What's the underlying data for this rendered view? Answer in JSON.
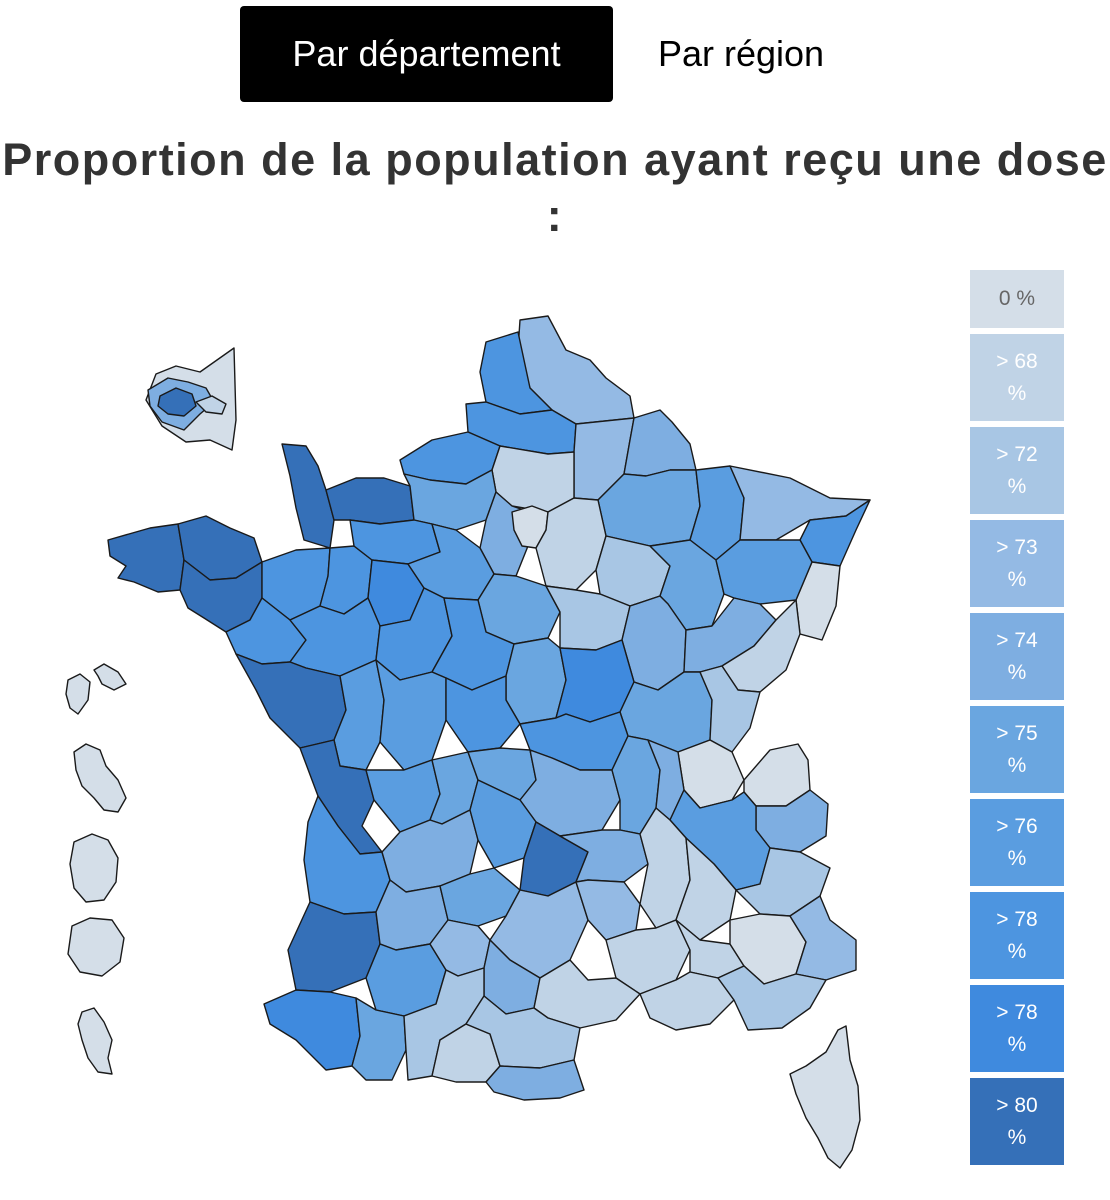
{
  "tabs": [
    {
      "label": "Par département",
      "active": true
    },
    {
      "label": "Par région",
      "active": false
    }
  ],
  "title": "Proportion de la population ayant reçu une dose :",
  "legend": [
    {
      "label": "0 %",
      "color": "#d4dee8"
    },
    {
      "label": "> 68 %",
      "color": "#c0d3e6"
    },
    {
      "label": "> 72 %",
      "color": "#a8c6e4"
    },
    {
      "label": "> 73 %",
      "color": "#94bae4"
    },
    {
      "label": "> 74 %",
      "color": "#7eaee1"
    },
    {
      "label": "> 75 %",
      "color": "#6aa6e0"
    },
    {
      "label": "> 76 %",
      "color": "#5a9de0"
    },
    {
      "label": "> 78 %",
      "color": "#4d95e0"
    },
    {
      "label": "> 78 %",
      "color": "#3f8ade"
    },
    {
      "label": "> 80 %",
      "color": "#3570b8"
    }
  ],
  "map": {
    "stroke": "#1a1a1a",
    "regions": [
      {
        "name": "guadeloupe",
        "bin": 0
      },
      {
        "name": "martinique",
        "bin": 0
      },
      {
        "name": "guyane",
        "bin": 0
      },
      {
        "name": "la-reunion",
        "bin": 0
      },
      {
        "name": "mayotte",
        "bin": 0
      },
      {
        "name": "ile-de-france-inset-outer",
        "bin": 0
      },
      {
        "name": "ile-de-france-inset-ring",
        "bin": 4
      },
      {
        "name": "ile-de-france-inset-paris",
        "bin": 9
      },
      {
        "name": "ile-de-france-inset-east",
        "bin": 1
      },
      {
        "name": "corse",
        "bin": 0
      },
      {
        "name": "nord",
        "bin": 3
      },
      {
        "name": "pas-de-calais",
        "bin": 7
      },
      {
        "name": "somme",
        "bin": 7
      },
      {
        "name": "aisne",
        "bin": 3
      },
      {
        "name": "ardennes",
        "bin": 4
      },
      {
        "name": "seine-maritime",
        "bin": 7
      },
      {
        "name": "oise",
        "bin": 1
      },
      {
        "name": "marne",
        "bin": 5
      },
      {
        "name": "meuse",
        "bin": 6
      },
      {
        "name": "moselle",
        "bin": 3
      },
      {
        "name": "bas-rhin",
        "bin": 7
      },
      {
        "name": "haut-rhin",
        "bin": 0
      },
      {
        "name": "manche",
        "bin": 9
      },
      {
        "name": "calvados",
        "bin": 9
      },
      {
        "name": "eure",
        "bin": 5
      },
      {
        "name": "val-d-oise-yvelines",
        "bin": 4
      },
      {
        "name": "paris-region",
        "bin": 0
      },
      {
        "name": "seine-et-marne",
        "bin": 1
      },
      {
        "name": "aube",
        "bin": 2
      },
      {
        "name": "haute-marne",
        "bin": 5
      },
      {
        "name": "vosges",
        "bin": 6
      },
      {
        "name": "finistere",
        "bin": 9
      },
      {
        "name": "cotes-d-armor",
        "bin": 9
      },
      {
        "name": "morbihan",
        "bin": 9
      },
      {
        "name": "ille-et-vilaine",
        "bin": 7
      },
      {
        "name": "mayenne",
        "bin": 7
      },
      {
        "name": "orne",
        "bin": 7
      },
      {
        "name": "sarthe",
        "bin": 8
      },
      {
        "name": "eure-et-loir",
        "bin": 6
      },
      {
        "name": "loiret",
        "bin": 5
      },
      {
        "name": "yonne",
        "bin": 2
      },
      {
        "name": "cote-d-or",
        "bin": 4
      },
      {
        "name": "haute-saone",
        "bin": 4
      },
      {
        "name": "doubs",
        "bin": 1
      },
      {
        "name": "loire-atlantique",
        "bin": 7
      },
      {
        "name": "maine-et-loire",
        "bin": 7
      },
      {
        "name": "indre-et-loire",
        "bin": 7
      },
      {
        "name": "loir-et-cher",
        "bin": 7
      },
      {
        "name": "cher",
        "bin": 5
      },
      {
        "name": "nievre",
        "bin": 8
      },
      {
        "name": "saone-et-loire",
        "bin": 5
      },
      {
        "name": "jura",
        "bin": 2
      },
      {
        "name": "vendee",
        "bin": 9
      },
      {
        "name": "deux-sevres",
        "bin": 6
      },
      {
        "name": "vienne",
        "bin": 6
      },
      {
        "name": "indre",
        "bin": 7
      },
      {
        "name": "allier",
        "bin": 7
      },
      {
        "name": "ain",
        "bin": 0
      },
      {
        "name": "haute-savoie",
        "bin": 0
      },
      {
        "name": "charente-maritime",
        "bin": 9
      },
      {
        "name": "charente",
        "bin": 6
      },
      {
        "name": "haute-vienne",
        "bin": 5
      },
      {
        "name": "creuse",
        "bin": 5
      },
      {
        "name": "puy-de-dome",
        "bin": 4
      },
      {
        "name": "loire",
        "bin": 5
      },
      {
        "name": "rhone",
        "bin": 4
      },
      {
        "name": "savoie",
        "bin": 4
      },
      {
        "name": "isere",
        "bin": 6
      },
      {
        "name": "gironde",
        "bin": 7
      },
      {
        "name": "dordogne",
        "bin": 4
      },
      {
        "name": "correze",
        "bin": 6
      },
      {
        "name": "cantal",
        "bin": 9
      },
      {
        "name": "haute-loire",
        "bin": 4
      },
      {
        "name": "ardeche",
        "bin": 1
      },
      {
        "name": "drome",
        "bin": 1
      },
      {
        "name": "hautes-alpes",
        "bin": 2
      },
      {
        "name": "landes",
        "bin": 9
      },
      {
        "name": "lot-et-garonne",
        "bin": 4
      },
      {
        "name": "lot",
        "bin": 5
      },
      {
        "name": "aveyron",
        "bin": 3
      },
      {
        "name": "lozere",
        "bin": 3
      },
      {
        "name": "gard",
        "bin": 1
      },
      {
        "name": "vaucluse",
        "bin": 1
      },
      {
        "name": "alpes-de-haute-provence",
        "bin": 0
      },
      {
        "name": "alpes-maritimes",
        "bin": 3
      },
      {
        "name": "pyrenees-atlantiques",
        "bin": 8
      },
      {
        "name": "gers",
        "bin": 6
      },
      {
        "name": "tarn-et-garonne",
        "bin": 3
      },
      {
        "name": "tarn",
        "bin": 4
      },
      {
        "name": "herault",
        "bin": 1
      },
      {
        "name": "bouches-du-rhone",
        "bin": 1
      },
      {
        "name": "var",
        "bin": 2
      },
      {
        "name": "hautes-pyrenees",
        "bin": 5
      },
      {
        "name": "haute-garonne",
        "bin": 2
      },
      {
        "name": "ariege",
        "bin": 1
      },
      {
        "name": "aude",
        "bin": 2
      },
      {
        "name": "pyrenees-orientales",
        "bin": 4
      }
    ]
  }
}
